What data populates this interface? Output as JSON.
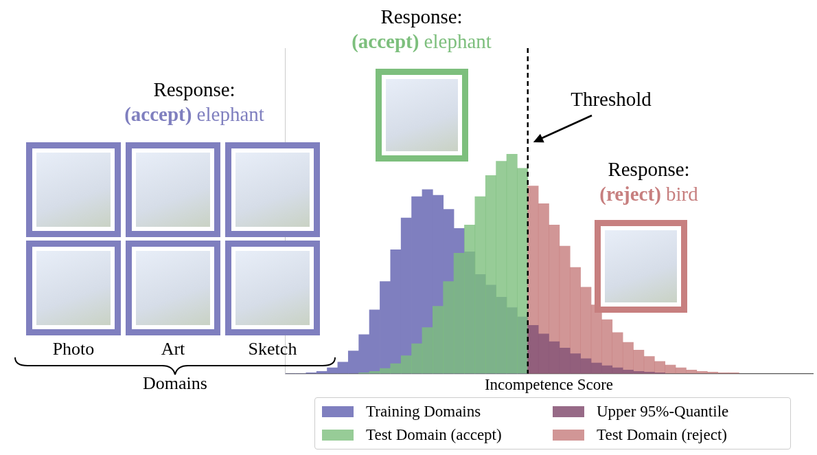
{
  "chart_data": {
    "type": "histogram",
    "x_label": "Incompetence Score",
    "xlim": [
      0,
      100
    ],
    "ylim": [
      0,
      460
    ],
    "tick_labels": false,
    "grid": false,
    "legend": "bottom",
    "bins": [
      0,
      2,
      4,
      6,
      8,
      10,
      12,
      14,
      16,
      18,
      20,
      22,
      24,
      26,
      28,
      30,
      32,
      34,
      36,
      38,
      40,
      42,
      44,
      46,
      48,
      50,
      52,
      54,
      56,
      58,
      60,
      62,
      64,
      66,
      68,
      70,
      72,
      74,
      76,
      78,
      80,
      82,
      84,
      86,
      88,
      90,
      92,
      94,
      96,
      98,
      100
    ],
    "series": [
      {
        "name": "Training Domains",
        "color": "#7f7fbf",
        "values": [
          0,
          0,
          1,
          3,
          8,
          16,
          32,
          55,
          90,
          130,
          175,
          220,
          250,
          260,
          252,
          232,
          205,
          172,
          140,
          125,
          108,
          93,
          80,
          null,
          null,
          null,
          null,
          null,
          null,
          null,
          null,
          null,
          null,
          null,
          null,
          null,
          null,
          null,
          null,
          null,
          null,
          null,
          null,
          null,
          null,
          null,
          null,
          null,
          null,
          null
        ]
      },
      {
        "name": "Upper 95%-Quantile",
        "color": "#8c5a7a",
        "values": [
          null,
          null,
          null,
          null,
          null,
          null,
          null,
          null,
          null,
          null,
          null,
          null,
          null,
          null,
          null,
          null,
          null,
          null,
          null,
          null,
          null,
          null,
          null,
          68,
          56,
          45,
          36,
          28,
          21,
          15,
          11,
          8,
          5,
          3,
          2,
          1,
          null,
          null,
          null,
          null,
          null,
          null,
          null,
          null,
          null,
          null,
          null,
          null,
          null,
          null
        ]
      },
      {
        "name": "Test Domain (accept)",
        "color": "#7dbf7d",
        "values": [
          null,
          null,
          null,
          null,
          null,
          null,
          null,
          1,
          3,
          7,
          14,
          25,
          42,
          65,
          95,
          130,
          170,
          210,
          250,
          280,
          300,
          310,
          290,
          null,
          null,
          null,
          null,
          null,
          null,
          null,
          null,
          null,
          null,
          null,
          null,
          null,
          null,
          null,
          null,
          null,
          null,
          null,
          null,
          null,
          null,
          null,
          null,
          null,
          null,
          null
        ]
      },
      {
        "name": "Test Domain (reject)",
        "color": "#c77f7f",
        "values": [
          null,
          null,
          null,
          null,
          null,
          null,
          null,
          null,
          null,
          null,
          null,
          null,
          null,
          null,
          null,
          null,
          null,
          null,
          null,
          null,
          null,
          null,
          null,
          265,
          240,
          210,
          180,
          150,
          122,
          97,
          76,
          58,
          44,
          33,
          24,
          17,
          12,
          8,
          5,
          3,
          2,
          1,
          1,
          null,
          null,
          null,
          null,
          null,
          null,
          null
        ]
      }
    ],
    "threshold": {
      "value": 46,
      "label": "Threshold",
      "line_style": "dashed"
    },
    "responses": [
      {
        "heading": "Response:",
        "decision": "(accept)",
        "label": "elephant",
        "color": "#7f7fbf"
      },
      {
        "heading": "Response:",
        "decision": "(accept)",
        "label": "elephant",
        "color": "#7dbf7d"
      },
      {
        "heading": "Response:",
        "decision": "(reject)",
        "label": "bird",
        "color": "#c77f7f"
      }
    ],
    "domains": {
      "label": "Domains",
      "names": [
        "Photo",
        "Art",
        "Sketch"
      ]
    }
  }
}
